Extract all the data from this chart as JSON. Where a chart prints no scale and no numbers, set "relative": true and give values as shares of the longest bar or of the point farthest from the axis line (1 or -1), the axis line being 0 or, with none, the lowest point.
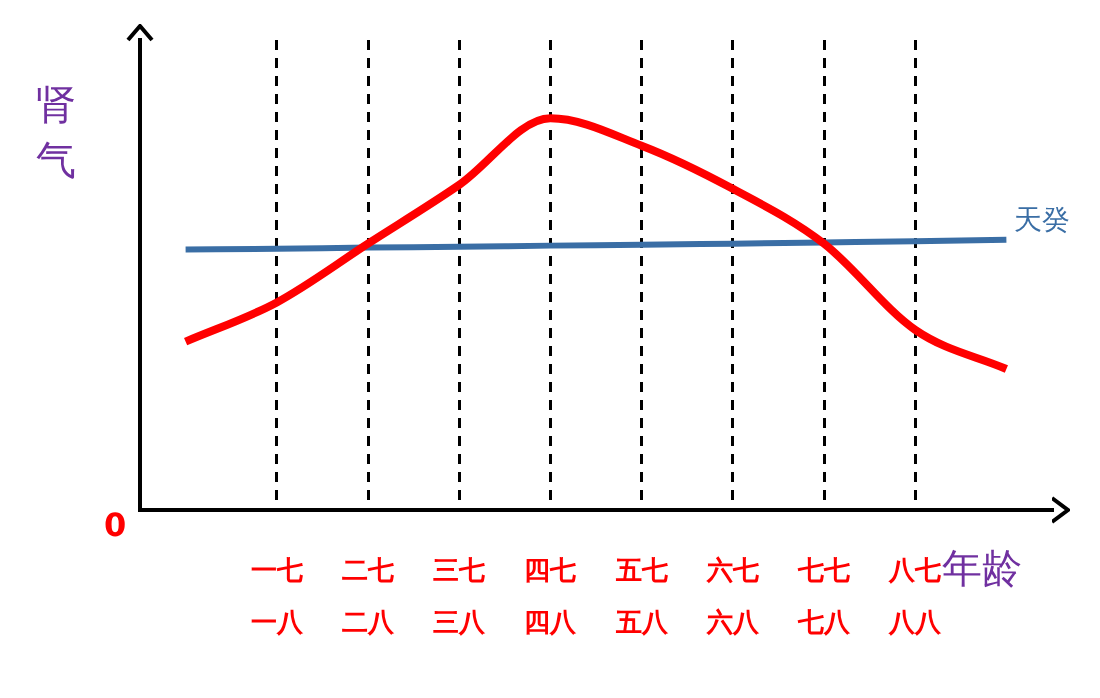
{
  "chart_data": {
    "type": "line",
    "relative": true,
    "ylabel": "肾气",
    "xlabel": "年龄",
    "annotations": [
      "0"
    ],
    "grid": "x",
    "line_style": "solid",
    "marker": "none",
    "legend": false,
    "categories": [
      null,
      "一七一八",
      "二七二八",
      "三七三八",
      "四七四八",
      "五七五八",
      "六七六八",
      "七七七八",
      "八七八八",
      null
    ],
    "series": [
      {
        "color": "#ff0000",
        "values": [
          0.43,
          0.53,
          0.68,
          0.83,
          1,
          0.93,
          0.82,
          0.68,
          0.46,
          0.36
        ]
      },
      {
        "name": "天癸",
        "color": "#3a6ea5",
        "values": [
          0.665,
          0.667,
          0.67,
          0.672,
          0.675,
          0.677,
          0.68,
          0.683,
          0.686,
          0.69
        ]
      }
    ]
  }
}
